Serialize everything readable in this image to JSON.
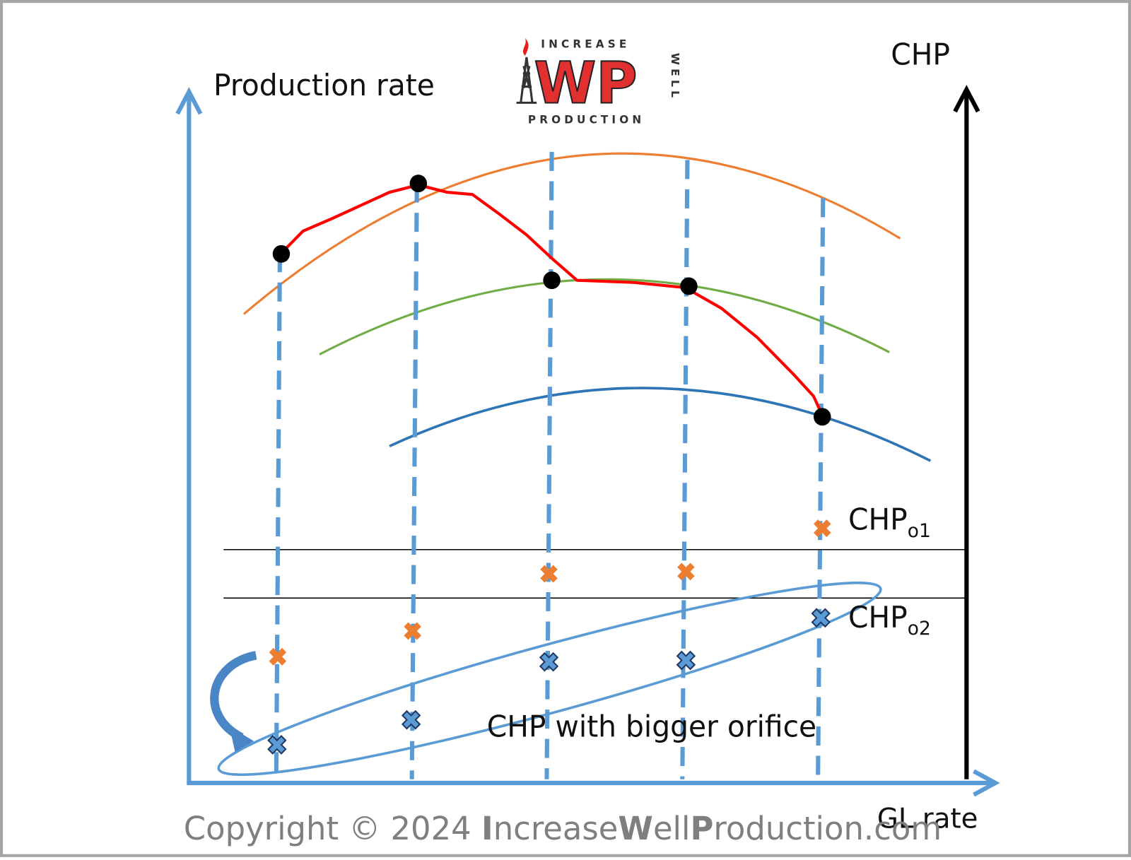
{
  "logo": {
    "top": "INCREASE",
    "mark": "WP",
    "side": "WELL",
    "bottom": "PRODUCTION"
  },
  "axes": {
    "y_left": "Production rate",
    "y_right": "CHP",
    "x": "GL rate"
  },
  "labels": {
    "chp_o1": {
      "main": "CHP",
      "sub": "o1"
    },
    "chp_o2": {
      "main": "CHP",
      "sub": "o2"
    },
    "bigger_orifice": "CHP with bigger orifice"
  },
  "copyright": [
    "Copyright © 2024 ",
    "I",
    "ncrease",
    "W",
    "ell",
    "P",
    "roduction.com"
  ]
}
